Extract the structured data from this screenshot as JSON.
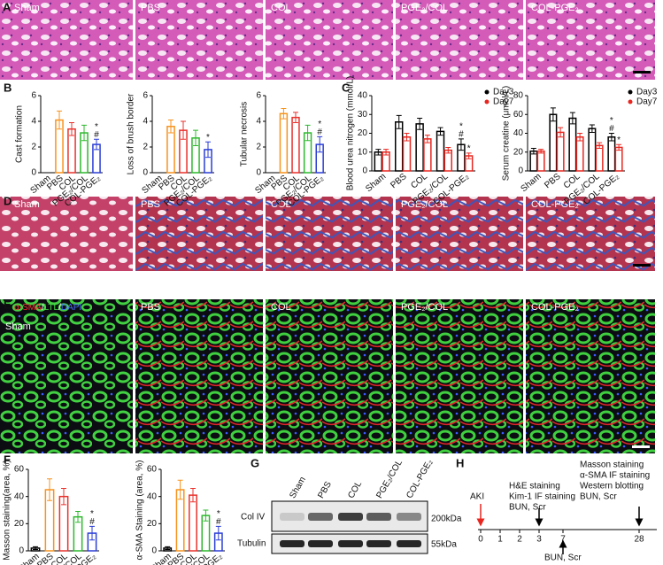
{
  "panel_letters": [
    "A",
    "B",
    "C",
    "D",
    "E",
    "F",
    "G",
    "H"
  ],
  "he_images": {
    "labels": [
      "Sham",
      "PBS",
      "COL",
      "PGE₂/COL",
      "COL-PGE₂"
    ]
  },
  "masson_images": {
    "labels": [
      "Sham",
      "PBS",
      "COL",
      "PGE₂/COL",
      "COL-PGE₂"
    ]
  },
  "if_images": {
    "stain_legend": [
      "α-SMA",
      "/",
      "LTL",
      "/",
      "DAPI"
    ],
    "labels": [
      "Sham",
      "PBS",
      "COL",
      "PGE₂/COL",
      "COL-PGE₂"
    ]
  },
  "chart_data": [
    {
      "type": "bar",
      "y_label": "Cast formation",
      "categories": [
        "Sham",
        "PBS",
        "COL",
        "PGE₂/COL",
        "COL-PGE₂"
      ],
      "values": [
        0,
        4.1,
        3.4,
        3.1,
        2.2
      ],
      "errors": [
        0,
        0.7,
        0.5,
        0.6,
        0.4
      ],
      "colors": [
        "#000000",
        "#f7931e",
        "#e8322d",
        "#2eb82e",
        "#2a3ed6"
      ],
      "ylim": [
        0,
        6
      ],
      "yticks": [
        0,
        2,
        4,
        6
      ],
      "annotations": [
        null,
        null,
        null,
        null,
        [
          "*",
          "#"
        ]
      ]
    },
    {
      "type": "bar",
      "y_label": "Loss of brush border",
      "categories": [
        "Sham",
        "PBS",
        "COL",
        "PGE₂/COL",
        "COL-PGE₂"
      ],
      "values": [
        0,
        3.6,
        3.3,
        2.7,
        1.8
      ],
      "errors": [
        0,
        0.5,
        0.7,
        0.6,
        0.6
      ],
      "colors": [
        "#000000",
        "#f7931e",
        "#e8322d",
        "#2eb82e",
        "#2a3ed6"
      ],
      "ylim": [
        0,
        6
      ],
      "yticks": [
        0,
        2,
        4,
        6
      ],
      "annotations": [
        null,
        null,
        null,
        null,
        [
          "*"
        ]
      ]
    },
    {
      "type": "bar",
      "y_label": "Tubular necrosis",
      "categories": [
        "Sham",
        "PBS",
        "COL",
        "PGE₂/COL",
        "COL-PGE₂"
      ],
      "values": [
        0,
        4.6,
        4.3,
        3.1,
        2.2
      ],
      "errors": [
        0,
        0.4,
        0.4,
        0.6,
        0.6
      ],
      "colors": [
        "#000000",
        "#f7931e",
        "#e8322d",
        "#2eb82e",
        "#2a3ed6"
      ],
      "ylim": [
        0,
        6
      ],
      "yticks": [
        0,
        2,
        4,
        6
      ],
      "annotations": [
        null,
        null,
        null,
        null,
        [
          "*",
          "#"
        ]
      ]
    },
    {
      "type": "bar",
      "y_label": "Blood urea nitrogen (mmol/L)",
      "categories": [
        "Sham",
        "PBS",
        "COL",
        "PGE₂/COL",
        "COL-PGE₂"
      ],
      "series": [
        {
          "name": "Day3",
          "color": "#000000",
          "values": [
            10,
            26,
            25,
            21,
            14
          ],
          "errors": [
            1.5,
            3.5,
            3,
            2,
            3
          ],
          "annotations": [
            null,
            null,
            null,
            null,
            [
              "*",
              "#"
            ]
          ]
        },
        {
          "name": "Day7",
          "color": "#e8261f",
          "values": [
            10,
            18,
            17,
            11,
            8
          ],
          "errors": [
            1.5,
            2,
            2,
            1.5,
            1.5
          ],
          "annotations": [
            null,
            null,
            null,
            null,
            [
              "*"
            ]
          ]
        }
      ],
      "ylim": [
        0,
        40
      ],
      "yticks": [
        0,
        10,
        20,
        30,
        40
      ]
    },
    {
      "type": "bar",
      "y_label": "Serum creatine (μmol/L)",
      "categories": [
        "Sham",
        "PBS",
        "COL",
        "PGE₂/COL",
        "COL-PGE₂"
      ],
      "series": [
        {
          "name": "Day3",
          "color": "#000000",
          "values": [
            21,
            60,
            56,
            45,
            36
          ],
          "errors": [
            3,
            7,
            6,
            4,
            4
          ],
          "annotations": [
            null,
            null,
            null,
            null,
            [
              "*",
              "#"
            ]
          ]
        },
        {
          "name": "Day7",
          "color": "#e8261f",
          "values": [
            21,
            41,
            36,
            27,
            25
          ],
          "errors": [
            2,
            5,
            4,
            3,
            3
          ],
          "annotations": [
            null,
            null,
            null,
            null,
            [
              "*"
            ]
          ]
        }
      ],
      "ylim": [
        0,
        80
      ],
      "yticks": [
        0,
        20,
        40,
        60,
        80
      ]
    },
    {
      "type": "bar",
      "y_label": "Masson staining(area, %)",
      "categories": [
        "Sham",
        "PBS",
        "COL",
        "PGE₂/COL",
        "COL-PGE₂"
      ],
      "values": [
        2,
        45,
        40,
        25,
        13
      ],
      "errors": [
        1,
        8,
        6,
        4,
        5
      ],
      "colors": [
        "#000000",
        "#f7931e",
        "#e8322d",
        "#2eb82e",
        "#2a3ed6"
      ],
      "ylim": [
        0,
        60
      ],
      "yticks": [
        0,
        20,
        40,
        60
      ],
      "annotations": [
        null,
        null,
        null,
        null,
        [
          "*",
          "#"
        ]
      ]
    },
    {
      "type": "bar",
      "y_label": "α-SMA Staining (area, %)",
      "categories": [
        "Sham",
        "PBS",
        "COL",
        "PGE₂/COL",
        "COL-PGE₂"
      ],
      "values": [
        2,
        45,
        41,
        26,
        13
      ],
      "errors": [
        1,
        7,
        5,
        4,
        5
      ],
      "colors": [
        "#000000",
        "#f7931e",
        "#e8322d",
        "#2eb82e",
        "#2a3ed6"
      ],
      "ylim": [
        0,
        60
      ],
      "yticks": [
        0,
        20,
        40,
        60
      ],
      "annotations": [
        null,
        null,
        null,
        null,
        [
          "*",
          "#"
        ]
      ]
    }
  ],
  "western_blot": {
    "lanes": [
      "Sham",
      "PBS",
      "COL",
      "PGE₂/COL",
      "COL-PGE₂"
    ],
    "proteins": [
      "Col IV",
      "Tubulin"
    ],
    "markers": [
      "200kDa",
      "55kDa"
    ]
  },
  "timeline": {
    "event": "AKI",
    "ticks": [
      "0",
      "1",
      "2",
      "3",
      "7",
      "28"
    ],
    "day3_tasks": [
      "H&E staining",
      "Kim-1 IF staining",
      "BUN, Scr"
    ],
    "day7_tasks": [
      "BUN, Scr"
    ],
    "day28_tasks": [
      "Masson staining",
      "α-SMA IF staining",
      "Western blotting",
      "BUN, Scr"
    ]
  }
}
